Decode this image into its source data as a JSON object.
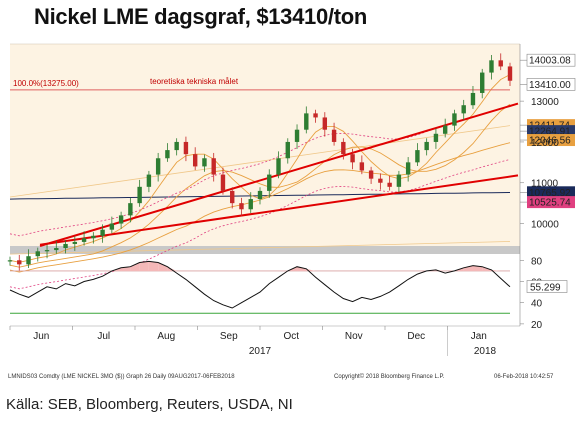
{
  "header": {
    "title": "Nickel LME dagsgraf, $13410/ton"
  },
  "footer": {
    "source": "Källa: SEB, Bloomberg, Reuters, USDA, NI",
    "ticker": "LMNIDS03 Comdty (LME NICKEL   3MO ($)) Graph 26  Daily 09AUG2017-06FEB2018",
    "copyright": "Copyright© 2018 Bloomberg Finance L.P.",
    "timestamp": "06-Feb-2018 10:42:57"
  },
  "colors": {
    "price_up": "#2e7d32",
    "price_down": "#c62828",
    "trendline": "#e00000",
    "target_line": "#e06060",
    "moving_avg": "#e8a040",
    "bollinger": "#e04080",
    "long_ma": "#1a2a5a",
    "rsi_line": "#111111",
    "rsi_band": "#d8a0a0",
    "rsi_30_line": "#3aa63a"
  },
  "chart_data": [
    {
      "type": "line",
      "panel": "price",
      "subtype": "candlestick",
      "x_labels": [
        "Jun",
        "Jul",
        "Aug",
        "Sep",
        "Oct",
        "Nov",
        "Dec",
        "Jan"
      ],
      "year_labels": [
        "2017",
        "2018"
      ],
      "y_ticks": [
        10000,
        11000,
        12000,
        13000
      ],
      "ylim": [
        9450,
        14400
      ],
      "annotations": {
        "target_label": "100.0%(13275.00)",
        "target_value": 13275,
        "target_text": "teoretiska tekniska målet"
      },
      "value_labels": [
        {
          "value": "14003.08",
          "y": 14003.08,
          "tag": "#ffffff"
        },
        {
          "value": "13410.00",
          "y": 13410,
          "tag": "#ffffff"
        },
        {
          "value": "12411.74",
          "y": 12411.74,
          "tag": "#e8a040"
        },
        {
          "value": "12264.91",
          "y": 12264.91,
          "tag": "#2a3a6a"
        },
        {
          "value": "12046.56",
          "y": 12046.56,
          "tag": "#e8a040"
        },
        {
          "value": "10765.92",
          "y": 10765.92,
          "tag": "#1a2a5a"
        },
        {
          "value": "10525.74",
          "y": 10525.74,
          "tag": "#e04080"
        }
      ],
      "series": [
        {
          "name": "",
          "role": "close",
          "values": [
            9100,
            9000,
            9200,
            9320,
            9350,
            9400,
            9500,
            9550,
            9640,
            9700,
            9850,
            10000,
            10200,
            10500,
            10900,
            11200,
            11600,
            11800,
            12000,
            11700,
            11400,
            11600,
            11200,
            10800,
            10500,
            10350,
            10600,
            10800,
            11200,
            11600,
            12000,
            12300,
            12700,
            12600,
            12300,
            12000,
            11700,
            11500,
            11300,
            11100,
            11000,
            10900,
            11200,
            11500,
            11800,
            12000,
            12200,
            12400,
            12700,
            12900,
            13200,
            13700,
            14000,
            13850,
            13500
          ]
        }
      ]
    },
    {
      "type": "line",
      "panel": "rsi",
      "y_ticks": [
        20,
        40,
        60,
        80
      ],
      "ylim": [
        18,
        86
      ],
      "reference_lines": [
        30,
        70
      ],
      "value_labels": [
        {
          "value": "55.299",
          "y": 55.299
        }
      ],
      "series": [
        {
          "name": "",
          "values": [
            52,
            48,
            45,
            50,
            55,
            53,
            58,
            56,
            60,
            62,
            65,
            70,
            73,
            74,
            78,
            79,
            78,
            74,
            68,
            62,
            55,
            48,
            42,
            38,
            35,
            40,
            45,
            50,
            58,
            64,
            70,
            74,
            72,
            64,
            57,
            50,
            44,
            41,
            45,
            43,
            46,
            50,
            56,
            62,
            67,
            70,
            71,
            68,
            70,
            73,
            75,
            74,
            71,
            63,
            55
          ]
        }
      ]
    }
  ]
}
